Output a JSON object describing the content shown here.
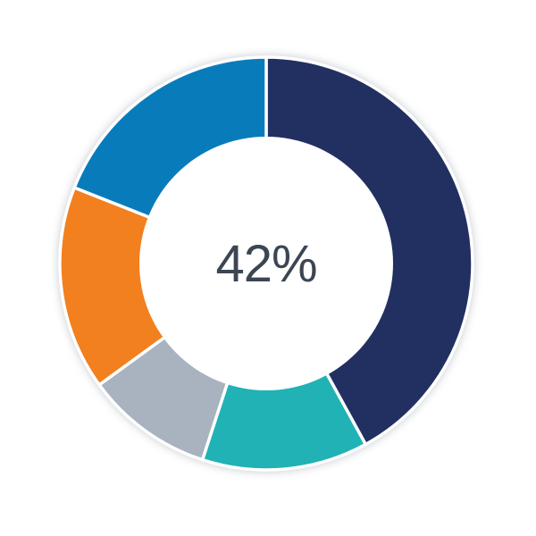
{
  "chart_data": {
    "type": "pie",
    "subtype": "donut",
    "title": "",
    "legend_position": "none",
    "center_label": "42%",
    "center_label_color": "#3C4653",
    "start_angle_deg": 0,
    "direction": "clockwise",
    "gap_color": "#FFFFFF",
    "segments": [
      {
        "name": "navy",
        "value": 42,
        "color": "#213061"
      },
      {
        "name": "teal",
        "value": 13,
        "color": "#20B2B5"
      },
      {
        "name": "gray",
        "value": 10,
        "color": "#A9B2BF"
      },
      {
        "name": "orange",
        "value": 16,
        "color": "#F2801E"
      },
      {
        "name": "blue",
        "value": 19,
        "color": "#087CBB"
      }
    ]
  }
}
